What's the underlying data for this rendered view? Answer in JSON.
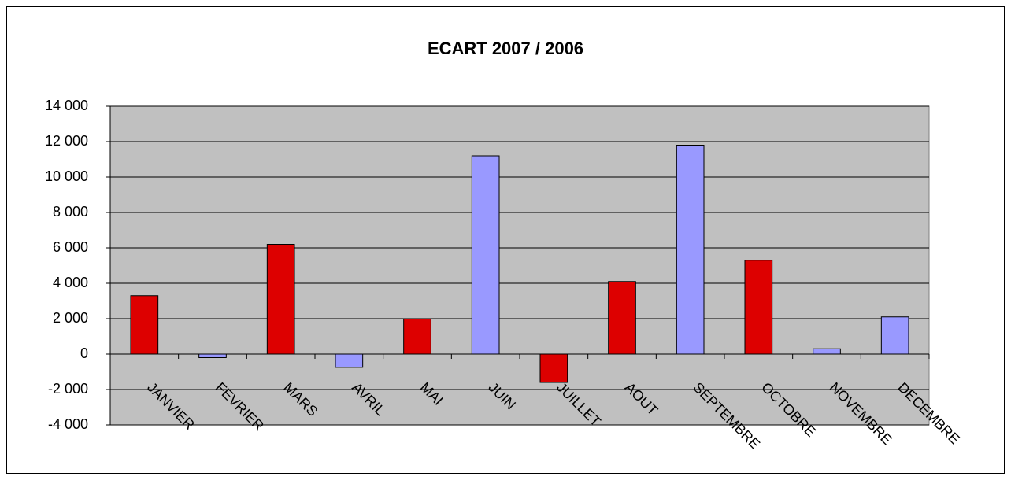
{
  "chart_data": {
    "type": "bar",
    "title": "ECART 2007 / 2006",
    "categories": [
      "JANVIER",
      "FEVRIER",
      "MARS",
      "AVRIL",
      "MAI",
      "JUIN",
      "JUILLET",
      "AOUT",
      "SEPTEMBRE",
      "OCTOBRE",
      "NOVEMBRE",
      "DECEMBRE"
    ],
    "values": [
      3300,
      -200,
      6200,
      -750,
      2000,
      11200,
      -1600,
      4100,
      11800,
      5300,
      300,
      2100
    ],
    "colors": [
      "#dd0000",
      "#9999ff",
      "#dd0000",
      "#9999ff",
      "#dd0000",
      "#9999ff",
      "#dd0000",
      "#dd0000",
      "#9999ff",
      "#dd0000",
      "#9999ff",
      "#9999ff"
    ],
    "ylim": [
      -4000,
      14000
    ],
    "yticks": [
      {
        "value": -4000,
        "label": "-4 000"
      },
      {
        "value": -2000,
        "label": "-2 000"
      },
      0,
      {
        "value": 2000,
        "label": "2 000"
      },
      {
        "value": 4000,
        "label": "4 000"
      },
      {
        "value": 6000,
        "label": "6 000"
      },
      {
        "value": 8000,
        "label": "8 000"
      },
      {
        "value": 10000,
        "label": "10 000"
      },
      {
        "value": 12000,
        "label": "12 000"
      },
      {
        "value": 14000,
        "label": "14 000"
      }
    ],
    "grid": true
  }
}
